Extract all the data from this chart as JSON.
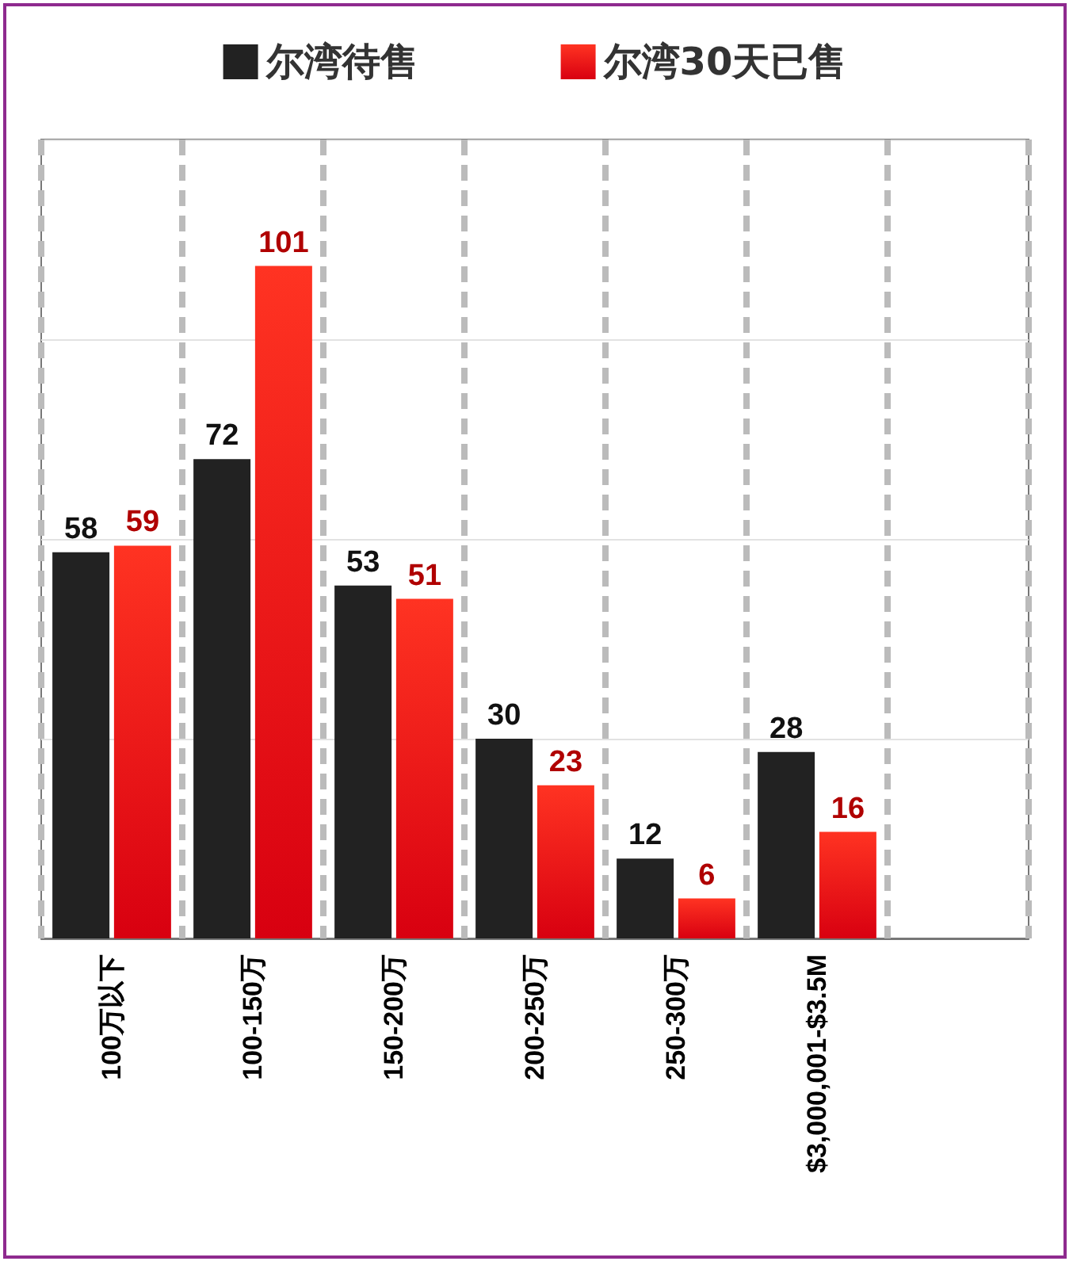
{
  "chart_data": {
    "type": "bar",
    "categories": [
      "100万以下",
      "100-150万",
      "150-200万",
      "200-250万",
      "250-300万",
      "$3,000,001-$3.5M",
      null
    ],
    "series": [
      {
        "name": "尔湾待售",
        "color": "#222222",
        "values": [
          58,
          72,
          53,
          30,
          12,
          28,
          null
        ]
      },
      {
        "name": "尔湾30天已售",
        "color": "#ff3322",
        "values": [
          59,
          101,
          51,
          23,
          6,
          16,
          null
        ]
      }
    ],
    "ylim": [
      0,
      120
    ],
    "yticks": [
      {
        "value": 30,
        "label": null
      },
      {
        "value": 60,
        "label": null
      },
      {
        "value": 90,
        "label": null
      },
      {
        "value": 120,
        "label": null
      }
    ],
    "tick_labels": "x",
    "grid": true,
    "legend": "top",
    "data_labels": true
  }
}
